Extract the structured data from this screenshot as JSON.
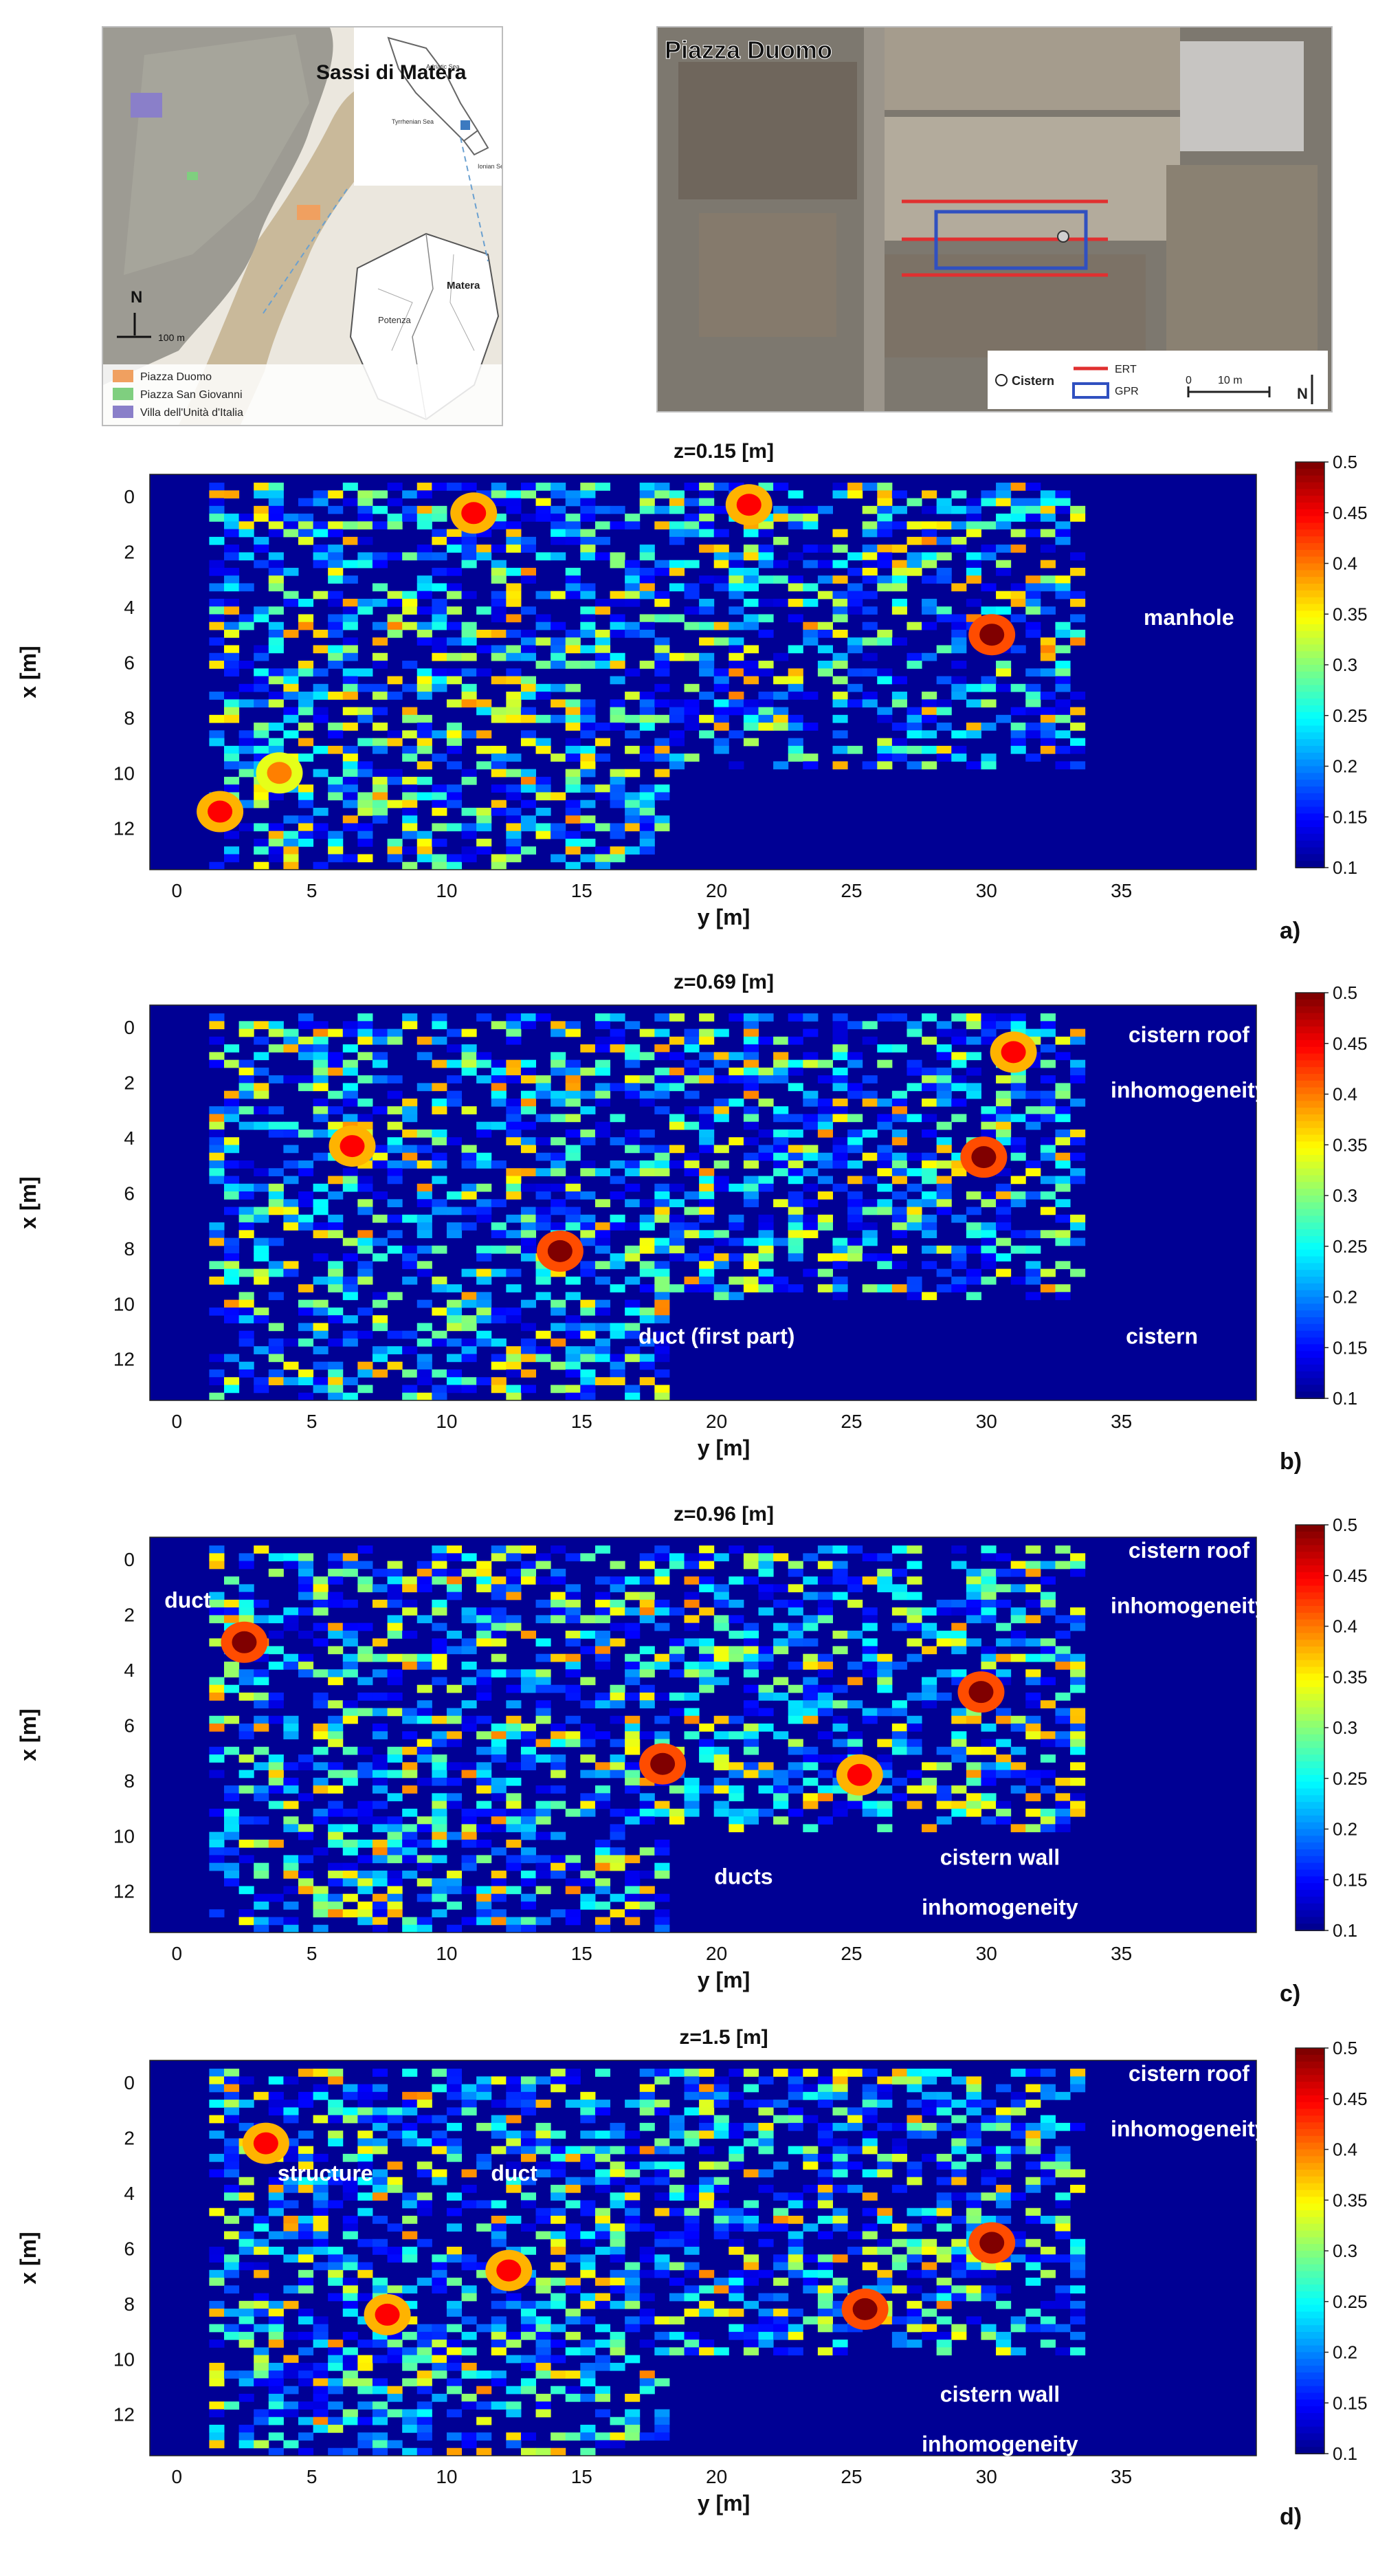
{
  "maps": {
    "left": {
      "title": "Sassi di Matera",
      "scale_label": "100 m",
      "north_label": "N",
      "legend": [
        {
          "label": "Piazza Duomo",
          "color": "#f0a060"
        },
        {
          "label": "Piazza San Giovanni",
          "color": "#7fcf7f"
        },
        {
          "label": "Villa dell'Unità d'Italia",
          "color": "#8a7fc9"
        }
      ],
      "inset_labels": [
        "Adriatic Sea",
        "Tyrrhenian Sea",
        "Ionian Sea"
      ],
      "region_labels": [
        "Potenza",
        "Matera"
      ]
    },
    "right": {
      "title": "Piazza Duomo",
      "legend_cistern": "Cistern",
      "legend_ert": "ERT",
      "legend_gpr": "GPR",
      "scale_label": "10 m",
      "north_label": "N",
      "scale_ticks": [
        "0"
      ],
      "colors": {
        "ert": "#e03030",
        "gpr": "#3050c0"
      }
    }
  },
  "colormap": "jet",
  "chart_data": [
    {
      "type": "heatmap",
      "panel_label": "a)",
      "title": "z=0.15 [m]",
      "xlabel": "y [m]",
      "ylabel": "x [m]",
      "xlim": [
        -1,
        40
      ],
      "ylim": [
        13.5,
        -0.8
      ],
      "xticks": [
        "0",
        "5",
        "10",
        "15",
        "20",
        "25",
        "30",
        "35"
      ],
      "yticks": [
        "0",
        "2",
        "4",
        "6",
        "8",
        "10",
        "12"
      ],
      "colorbar": {
        "min": 0.1,
        "max": 0.5,
        "ticks": [
          "0.5",
          "0.45",
          "0.4",
          "0.35",
          "0.3",
          "0.25",
          "0.2",
          "0.15",
          "0.1"
        ]
      },
      "hotspots": [
        {
          "y": 30.2,
          "x": 5.0,
          "value": 0.5
        },
        {
          "y": 11.0,
          "x": 0.6,
          "value": 0.45
        },
        {
          "y": 21.2,
          "x": 0.3,
          "value": 0.45
        },
        {
          "y": 1.6,
          "x": 11.4,
          "value": 0.45
        },
        {
          "y": 3.8,
          "x": 10.0,
          "value": 0.4
        }
      ],
      "annotations": [
        {
          "text": "manhole",
          "y": 37.5,
          "x": 4.4
        }
      ]
    },
    {
      "type": "heatmap",
      "panel_label": "b)",
      "title": "z=0.69 [m]",
      "xlabel": "y [m]",
      "ylabel": "x [m]",
      "xlim": [
        -1,
        40
      ],
      "ylim": [
        13.5,
        -0.8
      ],
      "xticks": [
        "0",
        "5",
        "10",
        "15",
        "20",
        "25",
        "30",
        "35"
      ],
      "yticks": [
        "0",
        "2",
        "4",
        "6",
        "8",
        "10",
        "12"
      ],
      "colorbar": {
        "min": 0.1,
        "max": 0.5,
        "ticks": [
          "0.5",
          "0.45",
          "0.4",
          "0.35",
          "0.3",
          "0.25",
          "0.2",
          "0.15",
          "0.1"
        ]
      },
      "hotspots": [
        {
          "y": 29.9,
          "x": 4.7,
          "value": 0.5
        },
        {
          "y": 14.2,
          "x": 8.1,
          "value": 0.5
        },
        {
          "y": 6.5,
          "x": 4.3,
          "value": 0.45
        },
        {
          "y": 31.0,
          "x": 0.9,
          "value": 0.45
        }
      ],
      "annotations": [
        {
          "text": "cistern roof",
          "y": 37.5,
          "x": 0.3
        },
        {
          "text": "inhomogeneity",
          "y": 37.5,
          "x": 2.3
        },
        {
          "text": "duct (first part)",
          "y": 20.0,
          "x": 11.2
        },
        {
          "text": "cistern",
          "y": 36.5,
          "x": 11.2
        }
      ]
    },
    {
      "type": "heatmap",
      "panel_label": "c)",
      "title": "z=0.96 [m]",
      "xlabel": "y [m]",
      "ylabel": "x [m]",
      "xlim": [
        -1,
        40
      ],
      "ylim": [
        13.5,
        -0.8
      ],
      "xticks": [
        "0",
        "5",
        "10",
        "15",
        "20",
        "25",
        "30",
        "35"
      ],
      "yticks": [
        "0",
        "2",
        "4",
        "6",
        "8",
        "10",
        "12"
      ],
      "colorbar": {
        "min": 0.1,
        "max": 0.5,
        "ticks": [
          "0.5",
          "0.45",
          "0.4",
          "0.35",
          "0.3",
          "0.25",
          "0.2",
          "0.15",
          "0.1"
        ]
      },
      "hotspots": [
        {
          "y": 2.5,
          "x": 3.0,
          "value": 0.5
        },
        {
          "y": 18.0,
          "x": 7.4,
          "value": 0.5
        },
        {
          "y": 29.8,
          "x": 4.8,
          "value": 0.5
        },
        {
          "y": 25.3,
          "x": 7.8,
          "value": 0.45
        }
      ],
      "annotations": [
        {
          "text": "duct",
          "y": 0.4,
          "x": 1.5
        },
        {
          "text": "cistern roof",
          "y": 37.5,
          "x": -0.3
        },
        {
          "text": "inhomogeneity",
          "y": 37.5,
          "x": 1.7
        },
        {
          "text": "ducts",
          "y": 21.0,
          "x": 11.5
        },
        {
          "text": "cistern wall",
          "y": 30.5,
          "x": 10.8
        },
        {
          "text": "inhomogeneity",
          "y": 30.5,
          "x": 12.6
        }
      ]
    },
    {
      "type": "heatmap",
      "panel_label": "d)",
      "title": "z=1.5  [m]",
      "xlabel": "y [m]",
      "ylabel": "x [m]",
      "xlim": [
        -1,
        40
      ],
      "ylim": [
        13.5,
        -0.8
      ],
      "xticks": [
        "0",
        "5",
        "10",
        "15",
        "20",
        "25",
        "30",
        "35"
      ],
      "yticks": [
        "0",
        "2",
        "4",
        "6",
        "8",
        "10",
        "12"
      ],
      "colorbar": {
        "min": 0.1,
        "max": 0.5,
        "ticks": [
          "0.5",
          "0.45",
          "0.4",
          "0.35",
          "0.3",
          "0.25",
          "0.2",
          "0.15",
          "0.1"
        ]
      },
      "hotspots": [
        {
          "y": 30.2,
          "x": 5.8,
          "value": 0.5
        },
        {
          "y": 25.5,
          "x": 8.2,
          "value": 0.5
        },
        {
          "y": 3.3,
          "x": 2.2,
          "value": 0.45
        },
        {
          "y": 12.3,
          "x": 6.8,
          "value": 0.45
        },
        {
          "y": 7.8,
          "x": 8.4,
          "value": 0.45
        }
      ],
      "annotations": [
        {
          "text": "structure",
          "y": 5.5,
          "x": 3.3
        },
        {
          "text": "duct",
          "y": 12.5,
          "x": 3.3
        },
        {
          "text": "cistern roof",
          "y": 37.5,
          "x": -0.3
        },
        {
          "text": "inhomogeneity",
          "y": 37.5,
          "x": 1.7
        },
        {
          "text": "cistern wall",
          "y": 30.5,
          "x": 11.3
        },
        {
          "text": "inhomogeneity",
          "y": 30.5,
          "x": 13.1
        }
      ]
    }
  ]
}
